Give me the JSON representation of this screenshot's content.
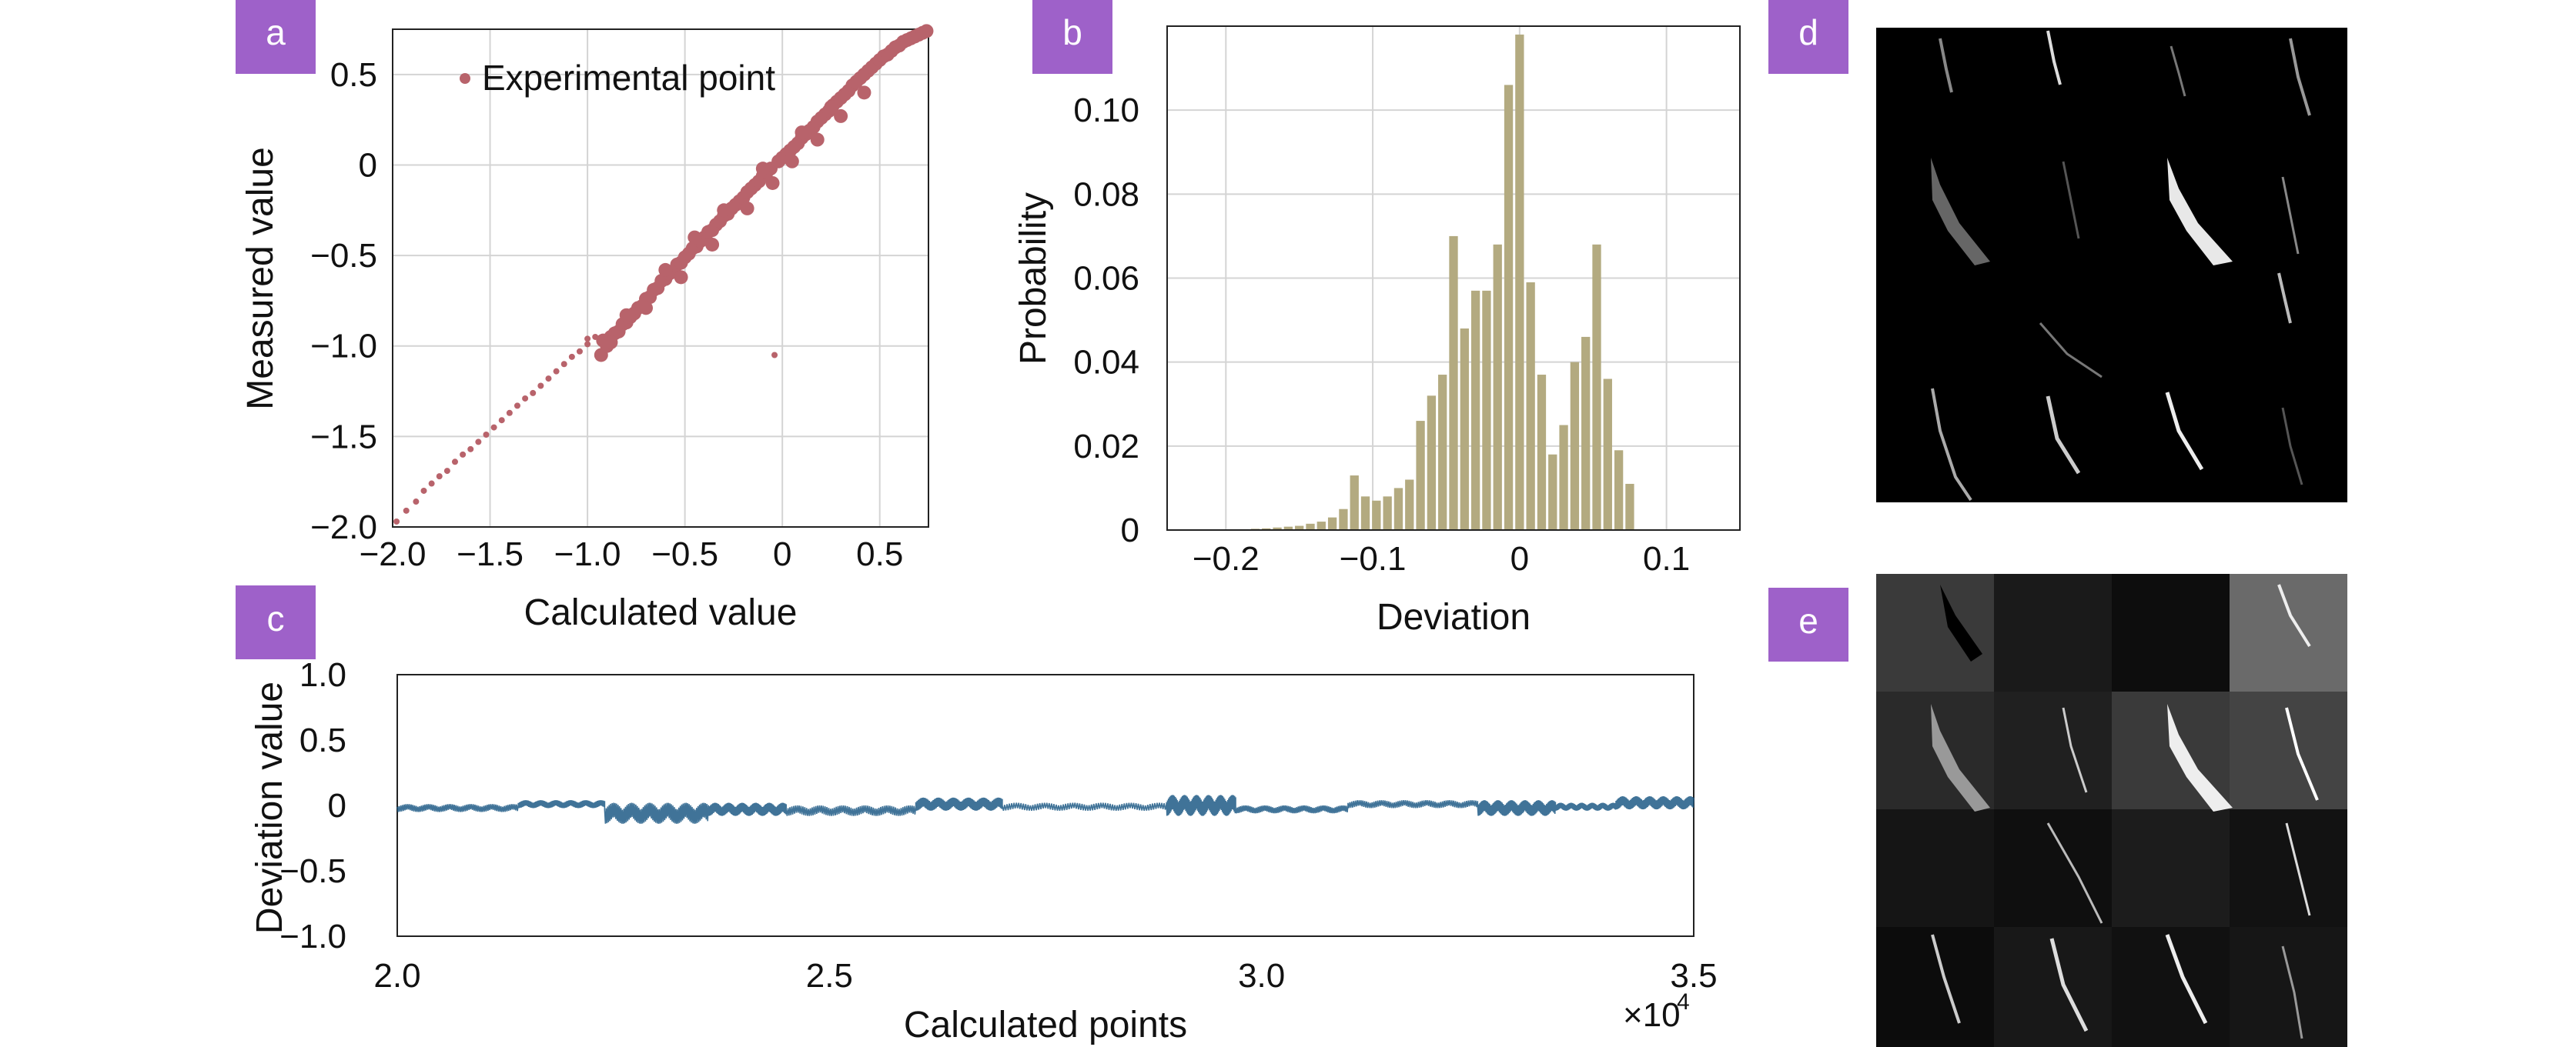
{
  "colors": {
    "scatter": "#b8636b",
    "hist": "#b3aa80",
    "deviation": "#1f5b86",
    "badge": "#9e61c9",
    "grid": "#d4d4d4"
  },
  "panels": {
    "a": {
      "letter": "a"
    },
    "b": {
      "letter": "b"
    },
    "c": {
      "letter": "c"
    },
    "d": {
      "letter": "d"
    },
    "e": {
      "letter": "e"
    }
  },
  "chart_data": [
    {
      "panel": "a",
      "type": "scatter",
      "xlabel": "Calculated value",
      "ylabel": "Measured value",
      "xlim": [
        -2.0,
        0.75
      ],
      "ylim": [
        -2.0,
        0.75
      ],
      "xticks": [
        -2.0,
        -1.5,
        -1.0,
        -0.5,
        0,
        0.5
      ],
      "xtick_labels": [
        "−2.0",
        "−1.5",
        "−1.0",
        "−0.5",
        "0",
        "0.5"
      ],
      "yticks": [
        -2.0,
        -1.5,
        -1.0,
        -0.5,
        0,
        0.5
      ],
      "ytick_labels": [
        "−2.0",
        "−1.5",
        "−1.0",
        "−0.5",
        "0",
        "0.5"
      ],
      "grid": true,
      "legend": {
        "label": "Experimental point",
        "placement": "top-left"
      },
      "points": [
        [
          -1.98,
          -1.97
        ],
        [
          -1.93,
          -1.91
        ],
        [
          -1.88,
          -1.86
        ],
        [
          -1.84,
          -1.8
        ],
        [
          -1.8,
          -1.76
        ],
        [
          -1.76,
          -1.72
        ],
        [
          -1.72,
          -1.69
        ],
        [
          -1.68,
          -1.64
        ],
        [
          -1.64,
          -1.6
        ],
        [
          -1.6,
          -1.57
        ],
        [
          -1.56,
          -1.53
        ],
        [
          -1.52,
          -1.49
        ],
        [
          -1.48,
          -1.45
        ],
        [
          -1.44,
          -1.41
        ],
        [
          -1.4,
          -1.37
        ],
        [
          -1.36,
          -1.33
        ],
        [
          -1.32,
          -1.29
        ],
        [
          -1.28,
          -1.26
        ],
        [
          -1.24,
          -1.22
        ],
        [
          -1.2,
          -1.18
        ],
        [
          -1.16,
          -1.14
        ],
        [
          -1.12,
          -1.1
        ],
        [
          -1.08,
          -1.06
        ],
        [
          -1.04,
          -1.03
        ],
        [
          -1.0,
          -0.99
        ],
        [
          -0.96,
          -0.95
        ],
        [
          -0.93,
          -1.05
        ],
        [
          -0.92,
          -0.97
        ],
        [
          -0.9,
          -1.0
        ],
        [
          -0.88,
          -0.95
        ],
        [
          -0.86,
          -0.93
        ],
        [
          -0.84,
          -0.92
        ],
        [
          -0.82,
          -0.88
        ],
        [
          -0.8,
          -0.87
        ],
        [
          -0.78,
          -0.84
        ],
        [
          -0.76,
          -0.82
        ],
        [
          -0.74,
          -0.79
        ],
        [
          -0.72,
          -0.78
        ],
        [
          -0.7,
          -0.74
        ],
        [
          -0.68,
          -0.73
        ],
        [
          -0.66,
          -0.69
        ],
        [
          -0.64,
          -0.68
        ],
        [
          -0.62,
          -0.64
        ],
        [
          -0.6,
          -0.63
        ],
        [
          -0.58,
          -0.6
        ],
        [
          -0.56,
          -0.59
        ],
        [
          -0.54,
          -0.55
        ],
        [
          -0.52,
          -0.54
        ],
        [
          -0.5,
          -0.51
        ],
        [
          -0.48,
          -0.49
        ],
        [
          -0.46,
          -0.46
        ],
        [
          -0.44,
          -0.45
        ],
        [
          -0.42,
          -0.42
        ],
        [
          -0.4,
          -0.4
        ],
        [
          -0.38,
          -0.37
        ],
        [
          -0.36,
          -0.36
        ],
        [
          -0.34,
          -0.33
        ],
        [
          -0.32,
          -0.31
        ],
        [
          -0.3,
          -0.28
        ],
        [
          -0.28,
          -0.27
        ],
        [
          -0.26,
          -0.24
        ],
        [
          -0.24,
          -0.22
        ],
        [
          -0.22,
          -0.2
        ],
        [
          -0.2,
          -0.18
        ],
        [
          -0.18,
          -0.15
        ],
        [
          -0.16,
          -0.13
        ],
        [
          -0.14,
          -0.11
        ],
        [
          -0.12,
          -0.09
        ],
        [
          -0.1,
          -0.06
        ],
        [
          -0.08,
          -0.04
        ],
        [
          -0.06,
          -0.02
        ],
        [
          -0.04,
          0.0
        ],
        [
          -0.02,
          0.02
        ],
        [
          0.0,
          0.04
        ],
        [
          0.02,
          0.06
        ],
        [
          0.04,
          0.08
        ],
        [
          0.06,
          0.1
        ],
        [
          0.08,
          0.12
        ],
        [
          0.1,
          0.15
        ],
        [
          0.12,
          0.17
        ],
        [
          0.14,
          0.19
        ],
        [
          0.16,
          0.21
        ],
        [
          0.18,
          0.24
        ],
        [
          0.2,
          0.26
        ],
        [
          0.22,
          0.28
        ],
        [
          0.24,
          0.3
        ],
        [
          0.26,
          0.33
        ],
        [
          0.28,
          0.35
        ],
        [
          0.3,
          0.37
        ],
        [
          0.32,
          0.39
        ],
        [
          0.34,
          0.41
        ],
        [
          0.36,
          0.44
        ],
        [
          0.38,
          0.46
        ],
        [
          0.4,
          0.48
        ],
        [
          0.42,
          0.5
        ],
        [
          0.44,
          0.52
        ],
        [
          0.46,
          0.54
        ],
        [
          0.48,
          0.56
        ],
        [
          0.5,
          0.58
        ],
        [
          0.52,
          0.6
        ],
        [
          0.54,
          0.61
        ],
        [
          0.56,
          0.63
        ],
        [
          0.58,
          0.65
        ],
        [
          0.6,
          0.66
        ],
        [
          0.62,
          0.68
        ],
        [
          0.64,
          0.69
        ],
        [
          0.66,
          0.7
        ],
        [
          0.68,
          0.71
        ],
        [
          0.7,
          0.72
        ],
        [
          0.72,
          0.73
        ],
        [
          0.74,
          0.74
        ],
        [
          -0.04,
          -1.05
        ],
        [
          -0.88,
          -0.98
        ],
        [
          -0.7,
          -0.79
        ],
        [
          -0.52,
          -0.62
        ],
        [
          -0.36,
          -0.44
        ],
        [
          -0.18,
          -0.24
        ],
        [
          -0.05,
          -0.1
        ],
        [
          0.05,
          0.02
        ],
        [
          0.18,
          0.14
        ],
        [
          0.3,
          0.27
        ],
        [
          0.42,
          0.4
        ],
        [
          -0.6,
          -0.58
        ],
        [
          -0.3,
          -0.25
        ],
        [
          -0.1,
          -0.02
        ],
        [
          0.1,
          0.18
        ],
        [
          0.25,
          0.32
        ],
        [
          -0.45,
          -0.4
        ],
        [
          -0.8,
          -0.83
        ],
        [
          -1.0,
          -0.96
        ]
      ]
    },
    {
      "panel": "b",
      "type": "bar",
      "xlabel": "Deviation",
      "ylabel": "Probability",
      "xlim": [
        -0.24,
        0.15
      ],
      "ylim": [
        0,
        0.12
      ],
      "xticks": [
        -0.2,
        -0.1,
        0,
        0.1
      ],
      "xtick_labels": [
        "−0.2",
        "−0.1",
        "0",
        "0.1"
      ],
      "yticks": [
        0,
        0.02,
        0.04,
        0.06,
        0.08,
        0.1
      ],
      "ytick_labels": [
        "0",
        "0.02",
        "0.04",
        "0.06",
        "0.08",
        "0.10"
      ],
      "grid": true,
      "bin_width": 0.0075,
      "bin_centers": [
        -0.1875,
        -0.18,
        -0.1725,
        -0.165,
        -0.1575,
        -0.15,
        -0.1425,
        -0.135,
        -0.1275,
        -0.12,
        -0.1125,
        -0.105,
        -0.0975,
        -0.09,
        -0.0825,
        -0.075,
        -0.0675,
        -0.06,
        -0.0525,
        -0.045,
        -0.0375,
        -0.03,
        -0.0225,
        -0.015,
        -0.0075,
        0.0,
        0.0075,
        0.015,
        0.0225,
        0.03,
        0.0375,
        0.045,
        0.0525,
        0.06,
        0.0675,
        0.075
      ],
      "values": [
        0.0002,
        0.0003,
        0.0004,
        0.0006,
        0.0008,
        0.001,
        0.0015,
        0.002,
        0.003,
        0.005,
        0.013,
        0.008,
        0.007,
        0.008,
        0.01,
        0.012,
        0.026,
        0.032,
        0.037,
        0.07,
        0.048,
        0.057,
        0.057,
        0.068,
        0.106,
        0.118,
        0.059,
        0.037,
        0.018,
        0.025,
        0.04,
        0.046,
        0.068,
        0.036,
        0.019,
        0.011
      ]
    },
    {
      "panel": "c",
      "type": "line",
      "xlabel": "Calculated points",
      "ylabel": "Deviation value",
      "xlim": [
        20000,
        35000
      ],
      "ylim": [
        -1.0,
        1.0
      ],
      "xticks": [
        20000,
        25000,
        30000,
        35000
      ],
      "xtick_labels": [
        "2.0",
        "2.5",
        "3.0",
        "3.5"
      ],
      "x_multiplier_label": "×10",
      "x_multiplier_exp": "4",
      "yticks": [
        -1.0,
        -0.5,
        0,
        0.5,
        1.0
      ],
      "ytick_labels": [
        "−1.0",
        "−0.5",
        "0",
        "0.5",
        "1.0"
      ],
      "grid": false,
      "segments": [
        {
          "x_start": 20000,
          "x_end": 21400,
          "level": -0.02,
          "spread": 0.03
        },
        {
          "x_start": 21400,
          "x_end": 22400,
          "level": 0.01,
          "spread": 0.03
        },
        {
          "x_start": 22400,
          "x_end": 23600,
          "level": -0.06,
          "spread": 0.08
        },
        {
          "x_start": 23600,
          "x_end": 24500,
          "level": -0.03,
          "spread": 0.05
        },
        {
          "x_start": 24500,
          "x_end": 26000,
          "level": -0.04,
          "spread": 0.04
        },
        {
          "x_start": 26000,
          "x_end": 27000,
          "level": 0.01,
          "spread": 0.05
        },
        {
          "x_start": 27000,
          "x_end": 28900,
          "level": -0.01,
          "spread": 0.03
        },
        {
          "x_start": 28900,
          "x_end": 29700,
          "level": 0.0,
          "spread": 0.08
        },
        {
          "x_start": 29700,
          "x_end": 31000,
          "level": -0.03,
          "spread": 0.03
        },
        {
          "x_start": 31000,
          "x_end": 32500,
          "level": 0.01,
          "spread": 0.03
        },
        {
          "x_start": 32500,
          "x_end": 33400,
          "level": -0.02,
          "spread": 0.06
        },
        {
          "x_start": 33400,
          "x_end": 34100,
          "level": -0.01,
          "spread": 0.03
        },
        {
          "x_start": 34100,
          "x_end": 35000,
          "level": 0.02,
          "spread": 0.05
        }
      ]
    }
  ]
}
